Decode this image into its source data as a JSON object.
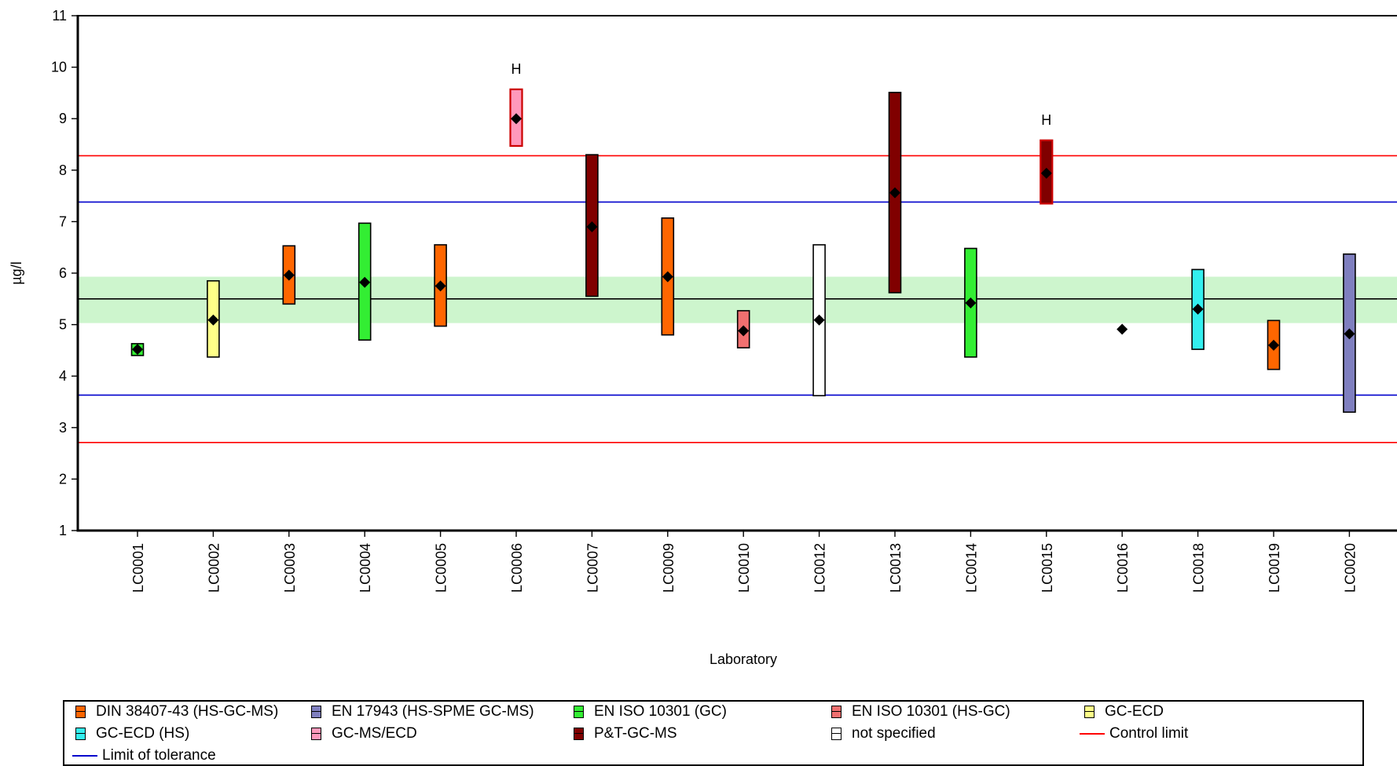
{
  "chart_data": {
    "type": "scatter",
    "ylabel": "µg/l",
    "xlabel": "Laboratory",
    "ylim": [
      1,
      11
    ],
    "yticks": [
      1,
      2,
      3,
      4,
      5,
      6,
      7,
      8,
      9,
      10,
      11
    ],
    "assigned_value": 5.5,
    "target_band": [
      5.03,
      5.93
    ],
    "control_limits": [
      2.71,
      8.28
    ],
    "tolerance_limits": [
      3.63,
      7.38
    ],
    "colors": {
      "target_band": "#cdf5cd",
      "assigned_line": "#000000",
      "control_limit": "#ff0000",
      "tolerance_limit": "#0000cc"
    },
    "methods": [
      {
        "key": "din",
        "name": "DIN 38407-43 (HS-GC-MS)",
        "color": "#ff6600"
      },
      {
        "key": "en17943",
        "name": "EN 17943 (HS-SPME GC-MS)",
        "color": "#7f7fbf"
      },
      {
        "key": "en10301gc",
        "name": "EN ISO 10301 (GC)",
        "color": "#33ee33"
      },
      {
        "key": "en10301hs",
        "name": "EN ISO 10301 (HS-GC)",
        "color": "#f07070"
      },
      {
        "key": "gcecd",
        "name": "GC-ECD",
        "color": "#ffff88"
      },
      {
        "key": "gcecdhs",
        "name": "GC-ECD (HS)",
        "color": "#33eeee"
      },
      {
        "key": "gcmsecd",
        "name": "GC-MS/ECD",
        "color": "#ff99bb"
      },
      {
        "key": "ptgcms",
        "name": "P&T-GC-MS",
        "color": "#800000"
      },
      {
        "key": "ns",
        "name": "not specified",
        "color": "#ffffff"
      }
    ],
    "lines_legend": {
      "control_limit": "Control limit",
      "tolerance_limit": "Limit of tolerance"
    },
    "laboratories": [
      {
        "lab": "LC0001",
        "value": 4.52,
        "low": 4.4,
        "high": 4.63,
        "method": "en10301gc",
        "flag": ""
      },
      {
        "lab": "LC0002",
        "value": 5.09,
        "low": 4.37,
        "high": 5.85,
        "method": "gcecd",
        "flag": ""
      },
      {
        "lab": "LC0003",
        "value": 5.96,
        "low": 5.4,
        "high": 6.53,
        "method": "din",
        "flag": ""
      },
      {
        "lab": "LC0004",
        "value": 5.82,
        "low": 4.7,
        "high": 6.97,
        "method": "en10301gc",
        "flag": ""
      },
      {
        "lab": "LC0005",
        "value": 5.75,
        "low": 4.97,
        "high": 6.55,
        "method": "din",
        "flag": ""
      },
      {
        "lab": "LC0006",
        "value": 9.0,
        "low": 8.47,
        "high": 9.57,
        "method": "gcmsecd",
        "flag": "H"
      },
      {
        "lab": "LC0007",
        "value": 6.9,
        "low": 5.55,
        "high": 8.3,
        "method": "ptgcms",
        "flag": ""
      },
      {
        "lab": "LC0009",
        "value": 5.93,
        "low": 4.8,
        "high": 7.07,
        "method": "din",
        "flag": ""
      },
      {
        "lab": "LC0010",
        "value": 4.88,
        "low": 4.55,
        "high": 5.27,
        "method": "en10301hs",
        "flag": ""
      },
      {
        "lab": "LC0012",
        "value": 5.09,
        "low": 3.62,
        "high": 6.55,
        "method": "ns",
        "flag": ""
      },
      {
        "lab": "LC0013",
        "value": 7.56,
        "low": 5.62,
        "high": 9.51,
        "method": "ptgcms",
        "flag": ""
      },
      {
        "lab": "LC0014",
        "value": 5.42,
        "low": 4.37,
        "high": 6.48,
        "method": "en10301gc",
        "flag": ""
      },
      {
        "lab": "LC0015",
        "value": 7.94,
        "low": 7.35,
        "high": 8.58,
        "method": "ptgcms",
        "flag": "H"
      },
      {
        "lab": "LC0016",
        "value": 4.91,
        "low": null,
        "high": null,
        "method": "",
        "flag": ""
      },
      {
        "lab": "LC0018",
        "value": 5.3,
        "low": 4.52,
        "high": 6.07,
        "method": "gcecdhs",
        "flag": ""
      },
      {
        "lab": "LC0019",
        "value": 4.6,
        "low": 4.13,
        "high": 5.08,
        "method": "din",
        "flag": ""
      },
      {
        "lab": "LC0020",
        "value": 4.82,
        "low": 3.3,
        "high": 6.37,
        "method": "en17943",
        "flag": ""
      }
    ]
  }
}
